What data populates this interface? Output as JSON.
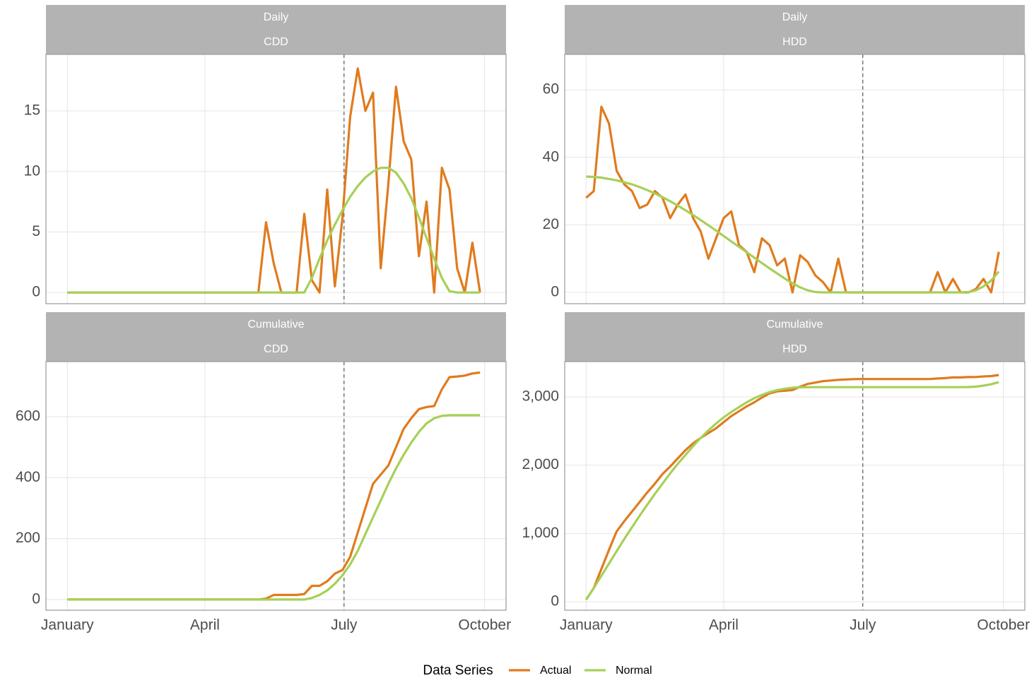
{
  "chart_data": [
    {
      "type": "line",
      "strip": [
        "Daily",
        "CDD"
      ],
      "x": [
        0,
        5,
        10,
        15,
        20,
        25,
        30,
        35,
        40,
        45,
        50,
        55,
        60,
        65,
        70,
        75,
        80,
        85,
        90,
        95,
        100,
        105,
        110,
        115,
        120,
        125,
        130,
        135,
        140,
        145,
        150,
        155,
        160,
        165,
        170,
        175,
        180,
        185,
        190,
        195,
        200,
        205,
        210,
        215,
        220,
        225,
        230,
        235,
        240,
        245,
        250,
        255,
        260,
        265,
        270
      ],
      "xlim": [
        -14,
        287
      ],
      "xticks": [
        {
          "value": 0,
          "label": "January"
        },
        {
          "value": 90,
          "label": "April"
        },
        {
          "value": 181,
          "label": "July"
        },
        {
          "value": 273,
          "label": "October"
        }
      ],
      "vline": 181,
      "ylim": [
        -0.93,
        19.67
      ],
      "yticks": [
        0,
        5,
        10,
        15
      ],
      "grid": true,
      "series": [
        {
          "name": "Actual",
          "color": "#e07b1e",
          "values": [
            0,
            0,
            0,
            0,
            0,
            0,
            0,
            0,
            0,
            0,
            0,
            0,
            0,
            0,
            0,
            0,
            0,
            0,
            0,
            0,
            0,
            0,
            0,
            0,
            0,
            0,
            5.8,
            2.4,
            0,
            0,
            0,
            6.5,
            1.0,
            0,
            8.5,
            0.5,
            6.2,
            14.5,
            18.5,
            15.0,
            16.5,
            2.0,
            9.0,
            17.0,
            12.5,
            11.0,
            3.0,
            7.5,
            0,
            10.3,
            8.5,
            2.0,
            0,
            4.1,
            0
          ]
        },
        {
          "name": "Normal",
          "color": "#a6d057",
          "values": [
            0,
            0,
            0,
            0,
            0,
            0,
            0,
            0,
            0,
            0,
            0,
            0,
            0,
            0,
            0,
            0,
            0,
            0,
            0,
            0,
            0,
            0,
            0,
            0,
            0,
            0,
            0,
            0,
            0,
            0,
            0,
            0,
            1.2,
            2.8,
            4.3,
            5.6,
            6.8,
            7.9,
            8.8,
            9.5,
            10.0,
            10.3,
            10.3,
            9.9,
            9.0,
            7.8,
            6.2,
            4.5,
            2.8,
            1.2,
            0.1,
            0,
            0,
            0,
            0
          ]
        }
      ]
    },
    {
      "type": "line",
      "strip": [
        "Daily",
        "HDD"
      ],
      "x": [
        0,
        5,
        10,
        15,
        20,
        25,
        30,
        35,
        40,
        45,
        50,
        55,
        60,
        65,
        70,
        75,
        80,
        85,
        90,
        95,
        100,
        105,
        110,
        115,
        120,
        125,
        130,
        135,
        140,
        145,
        150,
        155,
        160,
        165,
        170,
        175,
        180,
        185,
        190,
        195,
        200,
        205,
        210,
        215,
        220,
        225,
        230,
        235,
        240,
        245,
        250,
        255,
        260,
        265,
        270
      ],
      "xlim": [
        -14,
        287
      ],
      "xticks": [
        {
          "value": 0,
          "label": "January"
        },
        {
          "value": 90,
          "label": "April"
        },
        {
          "value": 181,
          "label": "July"
        },
        {
          "value": 273,
          "label": "October"
        }
      ],
      "vline": 181,
      "ylim": [
        -3.35,
        70.5
      ],
      "yticks": [
        0,
        20,
        40,
        60
      ],
      "grid": true,
      "series": [
        {
          "name": "Actual",
          "color": "#e07b1e",
          "values": [
            28,
            30,
            55,
            50,
            36,
            32,
            30,
            25,
            26,
            30,
            28,
            22,
            26,
            29,
            22,
            18,
            10,
            16,
            22,
            24,
            14,
            12,
            6,
            16,
            14,
            8,
            10,
            0,
            11,
            9,
            5,
            3,
            0,
            10,
            0,
            0,
            0,
            0,
            0,
            0,
            0,
            0,
            0,
            0,
            0,
            0,
            6,
            0,
            4,
            0,
            0,
            1,
            4,
            0,
            12
          ]
        },
        {
          "name": "Normal",
          "color": "#a6d057",
          "values": [
            34.3,
            34.2,
            34,
            33.6,
            33.2,
            32.6,
            32,
            31.2,
            30.3,
            29.3,
            28.2,
            27,
            25.7,
            24.3,
            22.9,
            21.4,
            19.9,
            18.3,
            16.7,
            15.1,
            13.5,
            11.9,
            10.3,
            8.7,
            7.1,
            5.6,
            4.1,
            2.7,
            1.5,
            0.6,
            0.1,
            0,
            0,
            0,
            0,
            0,
            0,
            0,
            0,
            0,
            0,
            0,
            0,
            0,
            0,
            0,
            0,
            0,
            0,
            0,
            0.1,
            0.6,
            1.8,
            3.5,
            6.2
          ]
        }
      ]
    },
    {
      "type": "line",
      "strip": [
        "Cumulative",
        "CDD"
      ],
      "x": [
        0,
        5,
        10,
        15,
        20,
        25,
        30,
        35,
        40,
        45,
        50,
        55,
        60,
        65,
        70,
        75,
        80,
        85,
        90,
        95,
        100,
        105,
        110,
        115,
        120,
        125,
        130,
        135,
        140,
        145,
        150,
        155,
        160,
        165,
        170,
        175,
        180,
        185,
        190,
        195,
        200,
        205,
        210,
        215,
        220,
        225,
        230,
        235,
        240,
        245,
        250,
        255,
        260,
        265,
        270
      ],
      "xlim": [
        -14,
        287
      ],
      "xticks": [
        {
          "value": 0,
          "label": "January"
        },
        {
          "value": 90,
          "label": "April"
        },
        {
          "value": 181,
          "label": "July"
        },
        {
          "value": 273,
          "label": "October"
        }
      ],
      "vline": 181,
      "ylim": [
        -35,
        781
      ],
      "yticks": [
        0,
        200,
        400,
        600
      ],
      "grid": true,
      "series": [
        {
          "name": "Actual",
          "color": "#e07b1e",
          "values": [
            0,
            0,
            0,
            0,
            0,
            0,
            0,
            0,
            0,
            0,
            0,
            0,
            0,
            0,
            0,
            0,
            0,
            0,
            0,
            0,
            0,
            0,
            0,
            0,
            0,
            0,
            3,
            15,
            15,
            15,
            15,
            18,
            45,
            45,
            60,
            85,
            97,
            140,
            220,
            300,
            380,
            410,
            440,
            500,
            560,
            595,
            625,
            632,
            635,
            690,
            730,
            732,
            735,
            742,
            745
          ]
        },
        {
          "name": "Normal",
          "color": "#a6d057",
          "values": [
            0,
            0,
            0,
            0,
            0,
            0,
            0,
            0,
            0,
            0,
            0,
            0,
            0,
            0,
            0,
            0,
            0,
            0,
            0,
            0,
            0,
            0,
            0,
            0,
            0,
            0,
            0,
            0,
            0,
            0,
            0,
            0,
            5,
            15,
            30,
            52,
            80,
            115,
            160,
            215,
            270,
            325,
            380,
            430,
            475,
            515,
            550,
            578,
            595,
            603,
            605,
            605,
            605,
            605,
            605
          ]
        }
      ]
    },
    {
      "type": "line",
      "strip": [
        "Cumulative",
        "HDD"
      ],
      "x": [
        0,
        5,
        10,
        15,
        20,
        25,
        30,
        35,
        40,
        45,
        50,
        55,
        60,
        65,
        70,
        75,
        80,
        85,
        90,
        95,
        100,
        105,
        110,
        115,
        120,
        125,
        130,
        135,
        140,
        145,
        150,
        155,
        160,
        165,
        170,
        175,
        180,
        185,
        190,
        195,
        200,
        205,
        210,
        215,
        220,
        225,
        230,
        235,
        240,
        245,
        250,
        255,
        260,
        265,
        270
      ],
      "xlim": [
        -14,
        287
      ],
      "xticks": [
        {
          "value": 0,
          "label": "January"
        },
        {
          "value": 90,
          "label": "April"
        },
        {
          "value": 181,
          "label": "July"
        },
        {
          "value": 273,
          "label": "October"
        }
      ],
      "vline": 181,
      "ylim": [
        -124,
        3517
      ],
      "yticks": [
        0,
        {
          "value": 1000,
          "label": "1,000"
        },
        {
          "value": 2000,
          "label": "2,000"
        },
        {
          "value": 3000,
          "label": "3,000"
        }
      ],
      "grid": true,
      "series": [
        {
          "name": "Actual",
          "color": "#e07b1e",
          "values": [
            30,
            200,
            480,
            760,
            1030,
            1180,
            1320,
            1460,
            1600,
            1730,
            1870,
            1980,
            2100,
            2220,
            2320,
            2400,
            2470,
            2540,
            2630,
            2720,
            2790,
            2860,
            2920,
            2990,
            3050,
            3080,
            3090,
            3100,
            3150,
            3190,
            3210,
            3230,
            3240,
            3250,
            3255,
            3260,
            3262,
            3262,
            3262,
            3262,
            3262,
            3262,
            3262,
            3262,
            3262,
            3262,
            3270,
            3275,
            3285,
            3285,
            3290,
            3292,
            3300,
            3305,
            3320
          ]
        },
        {
          "name": "Normal",
          "color": "#a6d057",
          "values": [
            30,
            200,
            380,
            560,
            740,
            920,
            1090,
            1260,
            1420,
            1580,
            1730,
            1880,
            2020,
            2150,
            2280,
            2400,
            2510,
            2610,
            2700,
            2780,
            2850,
            2920,
            2980,
            3030,
            3070,
            3100,
            3120,
            3135,
            3140,
            3142,
            3143,
            3143,
            3143,
            3143,
            3143,
            3143,
            3143,
            3143,
            3143,
            3143,
            3143,
            3143,
            3143,
            3143,
            3143,
            3143,
            3143,
            3143,
            3143,
            3143,
            3145,
            3150,
            3165,
            3185,
            3215
          ]
        }
      ]
    }
  ],
  "legend": {
    "title": "Data Series"
  }
}
